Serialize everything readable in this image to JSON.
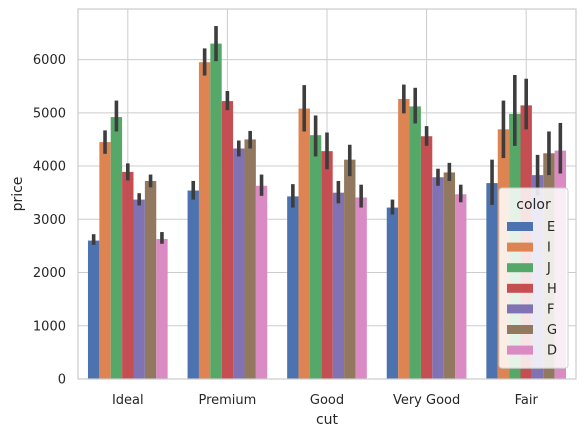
{
  "chart_data": {
    "type": "bar",
    "title": "",
    "xlabel": "cut",
    "ylabel": "price",
    "ylim": [
      0,
      6950
    ],
    "yticks": [
      0,
      1000,
      2000,
      3000,
      4000,
      5000,
      6000
    ],
    "grid": true,
    "legend_placement": "bottom-right",
    "legend_title": "color",
    "categories": [
      "Ideal",
      "Premium",
      "Good",
      "Very Good",
      "Fair"
    ],
    "series": [
      {
        "name": "E",
        "color": "#4c72b0",
        "values": [
          2600,
          3540,
          3430,
          3220,
          3680
        ],
        "ci_low": [
          2520,
          3370,
          3220,
          3090,
          3270
        ],
        "ci_high": [
          2720,
          3720,
          3660,
          3370,
          4120
        ]
      },
      {
        "name": "I",
        "color": "#dd8452",
        "values": [
          4450,
          5950,
          5080,
          5260,
          4690
        ],
        "ci_low": [
          4230,
          5700,
          4650,
          4990,
          4150
        ],
        "ci_high": [
          4670,
          6210,
          5520,
          5530,
          5230
        ]
      },
      {
        "name": "J",
        "color": "#55a868",
        "values": [
          4920,
          6300,
          4580,
          5120,
          4980
        ],
        "ci_low": [
          4650,
          5970,
          4180,
          4800,
          4380
        ],
        "ci_high": [
          5230,
          6630,
          4950,
          5470,
          5710
        ]
      },
      {
        "name": "H",
        "color": "#c44e52",
        "values": [
          3890,
          5220,
          4280,
          4560,
          5140
        ],
        "ci_low": [
          3730,
          5050,
          3940,
          4380,
          4690
        ],
        "ci_high": [
          4050,
          5410,
          4630,
          4750,
          5640
        ]
      },
      {
        "name": "F",
        "color": "#8172b3",
        "values": [
          3370,
          4330,
          3500,
          3790,
          3830
        ],
        "ci_low": [
          3260,
          4180,
          3300,
          3630,
          3450
        ],
        "ci_high": [
          3490,
          4480,
          3720,
          3950,
          4210
        ]
      },
      {
        "name": "G",
        "color": "#937860",
        "values": [
          3720,
          4500,
          4120,
          3880,
          4240
        ],
        "ci_low": [
          3600,
          4330,
          3810,
          3720,
          3830
        ],
        "ci_high": [
          3840,
          4660,
          4400,
          4060,
          4650
        ]
      },
      {
        "name": "D",
        "color": "#da8bc3",
        "values": [
          2630,
          3630,
          3410,
          3470,
          4290
        ],
        "ci_low": [
          2540,
          3440,
          3220,
          3320,
          3860
        ],
        "ci_high": [
          2760,
          3840,
          3650,
          3650,
          4810
        ]
      }
    ]
  }
}
